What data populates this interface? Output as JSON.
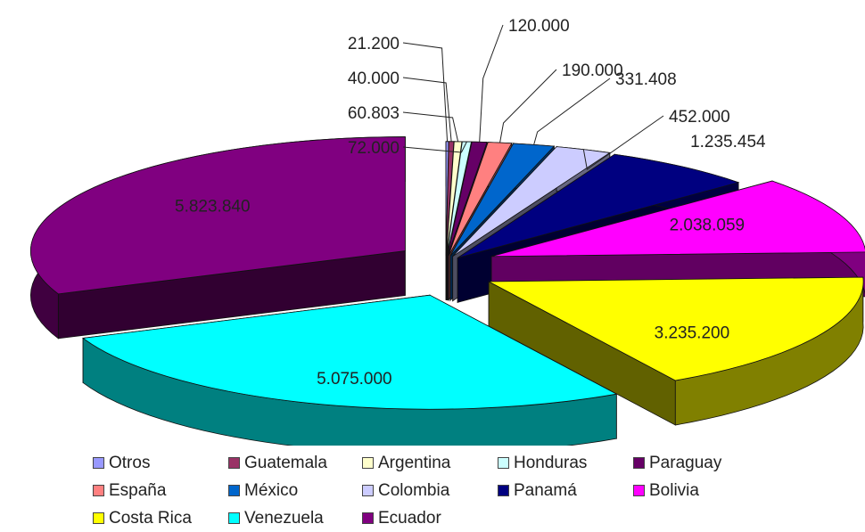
{
  "chart_data": {
    "type": "pie",
    "title": "",
    "categories": [
      "Otros",
      "Guatemala",
      "Argentina",
      "Honduras",
      "Paraguay",
      "España",
      "México",
      "Colombia",
      "Panamá",
      "Bolivia",
      "Costa Rica",
      "Venezuela",
      "Ecuador"
    ],
    "values": [
      21200,
      40000,
      60803,
      72000,
      120000,
      190000,
      331408,
      452000,
      1235454,
      2038059,
      3235200,
      5075000,
      5823840
    ],
    "labels": [
      "21.200",
      "40.000",
      "60.803",
      "72.000",
      "120.000",
      "190.000",
      "331.408",
      "452.000",
      "1.235.454",
      "2.038.059",
      "3.235.200",
      "5.075.000",
      "5.823.840"
    ],
    "colors": [
      "#9999FF",
      "#993366",
      "#FFFFCC",
      "#CCFFFF",
      "#660066",
      "#FF8080",
      "#0066CC",
      "#CCCCFF",
      "#000080",
      "#FF00FF",
      "#FFFF00",
      "#00FFFF",
      "#800080"
    ],
    "exploded": true,
    "legend_position": "bottom"
  }
}
